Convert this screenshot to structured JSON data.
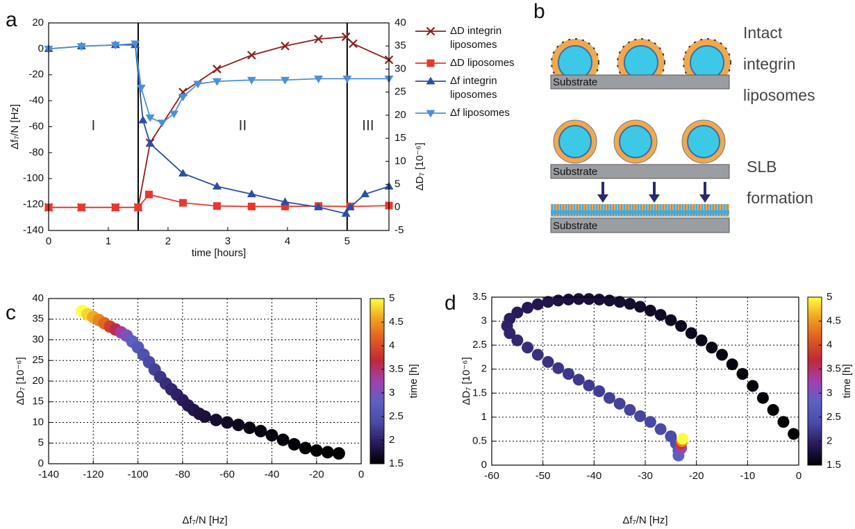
{
  "panel_labels": [
    "a",
    "b",
    "c",
    "d"
  ],
  "chart_data": [
    {
      "type": "line",
      "xlabel": "time [hours]",
      "ylabel": "Δf₇/N [Hz]",
      "y2label": "ΔD₇ [10⁻⁶]",
      "xlim": [
        0,
        5.7
      ],
      "xticks": [
        0,
        1,
        2,
        3,
        4,
        5
      ],
      "ylim": [
        -140,
        20
      ],
      "yticks": [
        -140,
        -120,
        -100,
        -80,
        -60,
        -40,
        -20,
        0,
        20
      ],
      "y2lim": [
        -5,
        40
      ],
      "y2ticks": [
        -5,
        0,
        5,
        10,
        15,
        20,
        25,
        30,
        35,
        40
      ],
      "vlines": [
        1.5,
        5
      ],
      "region_labels": [
        "I",
        "II",
        "III"
      ],
      "series": [
        {
          "name": "ΔD integrin liposomes",
          "color": "#8b1e1e",
          "marker": "x",
          "axis": "y2",
          "x": [
            0,
            0.55,
            1.12,
            1.5,
            1.7,
            2.25,
            2.82,
            3.4,
            3.96,
            4.52,
            4.98,
            5.1,
            5.7
          ],
          "values": [
            0,
            0,
            0,
            0,
            14,
            25,
            30,
            33,
            35,
            36.5,
            37,
            35.5,
            32
          ]
        },
        {
          "name": "ΔD liposomes",
          "color": "#e8382d",
          "marker": "s",
          "axis": "y2",
          "x": [
            0,
            0.55,
            1.12,
            1.5,
            1.68,
            2.25,
            2.82,
            3.4,
            3.96,
            4.52,
            5.05,
            5.7
          ],
          "values": [
            0,
            0,
            0,
            0,
            2.8,
            1,
            0.3,
            0.2,
            0.2,
            0.3,
            0.2,
            0.4
          ]
        },
        {
          "name": "Δf integrin liposomes",
          "color": "#2b4ea2",
          "marker": "^",
          "x": [
            0,
            0.55,
            1.12,
            1.45,
            1.58,
            1.7,
            2.25,
            2.82,
            3.4,
            3.96,
            4.52,
            4.98,
            5.05,
            5.3,
            5.7
          ],
          "values": [
            0,
            2,
            3,
            3,
            -55,
            -73,
            -96,
            -106,
            -112,
            -118,
            -122,
            -127,
            -122,
            -112,
            -106
          ]
        },
        {
          "name": "Δf liposomes",
          "color": "#4a90d8",
          "marker": "v",
          "x": [
            0,
            0.55,
            1.12,
            1.45,
            1.55,
            1.7,
            1.9,
            2.1,
            2.25,
            2.5,
            2.82,
            3.4,
            3.96,
            4.52,
            5.0,
            5.7
          ],
          "values": [
            0,
            2,
            3,
            4,
            -30,
            -53,
            -57,
            -50,
            -37,
            -27,
            -25,
            -24,
            -24,
            -23,
            -23,
            -23
          ]
        }
      ]
    },
    {
      "type": "scatter",
      "xlabel": "Δf₇/N [Hz]",
      "ylabel": "ΔD₇ [10⁻⁶]",
      "grid": true,
      "xlim": [
        -140,
        0
      ],
      "xticks": [
        -140,
        -120,
        -100,
        -80,
        -60,
        -40,
        -20,
        0
      ],
      "ylim": [
        0,
        40
      ],
      "yticks": [
        0,
        5,
        10,
        15,
        20,
        25,
        30,
        35,
        40
      ],
      "x": [
        -125,
        -122.5,
        -120,
        -117.5,
        -115,
        -112.5,
        -110,
        -107.5,
        -105,
        -102.5,
        -100,
        -97.5,
        -95,
        -92.5,
        -90,
        -87.5,
        -85,
        -82.5,
        -80,
        -77.5,
        -75,
        -72.5,
        -70,
        -65,
        -60,
        -55,
        -50,
        -45,
        -40,
        -35,
        -30,
        -25,
        -20,
        -15,
        -10
      ],
      "values": [
        37,
        36.2,
        35.5,
        34.8,
        34,
        33.2,
        32.5,
        31.8,
        31,
        29.6,
        28.2,
        26.4,
        24.6,
        22.8,
        21,
        19.4,
        18,
        16.7,
        15.4,
        14.1,
        13,
        12.1,
        11.4,
        10.6,
        10,
        9.4,
        8.7,
        7.9,
        6.9,
        5.8,
        4.7,
        3.8,
        3.2,
        2.8,
        2.5
      ],
      "time": [
        5.0,
        4.8,
        4.6,
        4.4,
        4.2,
        3.9,
        3.6,
        3.3,
        3.0,
        2.8,
        2.65,
        2.5,
        2.4,
        2.3,
        2.2,
        2.12,
        2.05,
        2.0,
        1.95,
        1.9,
        1.85,
        1.81,
        1.78,
        1.72,
        1.68,
        1.64,
        1.6,
        1.58,
        1.56,
        1.54,
        1.53,
        1.52,
        1.51,
        1.5,
        1.5
      ],
      "colorbar": {
        "label": "time [h]",
        "lim": [
          1.5,
          5
        ],
        "ticks": [
          1.5,
          2,
          2.5,
          3,
          3.5,
          4,
          4.5,
          5
        ],
        "colormap": [
          "#000000",
          "#2a1a5c",
          "#4a4aa8",
          "#5a62c2",
          "#a040b0",
          "#c02838",
          "#e05a20",
          "#f0a020",
          "#ffff40"
        ]
      }
    },
    {
      "type": "scatter",
      "xlabel": "Δf₇/N [Hz]",
      "ylabel": "ΔD₇ [10⁻⁶]",
      "grid": true,
      "xlim": [
        -60,
        0
      ],
      "xticks": [
        -60,
        -50,
        -40,
        -30,
        -20,
        -10,
        0
      ],
      "ylim": [
        0,
        3.5
      ],
      "yticks": [
        0,
        0.5,
        1,
        1.5,
        2,
        2.5,
        3,
        3.5
      ],
      "x": [
        -1,
        -3,
        -5,
        -7,
        -9,
        -11,
        -13,
        -15,
        -17,
        -19,
        -21,
        -23,
        -25,
        -27,
        -29,
        -31,
        -33,
        -35,
        -37,
        -39,
        -41,
        -43,
        -45,
        -47,
        -49,
        -51,
        -53,
        -55,
        -56.5,
        -57,
        -56.5,
        -55,
        -53,
        -51,
        -49,
        -47,
        -45,
        -43,
        -41,
        -39,
        -37,
        -35,
        -33,
        -31,
        -29,
        -27,
        -25,
        -24,
        -23.5,
        -23.5,
        -23,
        -23,
        -22.8,
        -22.7
      ],
      "values": [
        0.65,
        0.9,
        1.15,
        1.4,
        1.65,
        1.9,
        2.1,
        2.3,
        2.45,
        2.6,
        2.75,
        2.9,
        3.02,
        3.13,
        3.22,
        3.3,
        3.36,
        3.4,
        3.43,
        3.45,
        3.46,
        3.46,
        3.45,
        3.43,
        3.4,
        3.35,
        3.28,
        3.18,
        3.05,
        2.9,
        2.75,
        2.6,
        2.45,
        2.3,
        2.15,
        2.02,
        1.9,
        1.78,
        1.66,
        1.54,
        1.4,
        1.28,
        1.15,
        1.02,
        0.9,
        0.75,
        0.6,
        0.45,
        0.3,
        0.2,
        0.35,
        0.45,
        0.5,
        0.55
      ],
      "time": [
        1.5,
        1.51,
        1.52,
        1.54,
        1.55,
        1.56,
        1.58,
        1.59,
        1.61,
        1.62,
        1.64,
        1.65,
        1.66,
        1.68,
        1.69,
        1.71,
        1.72,
        1.73,
        1.75,
        1.76,
        1.77,
        1.79,
        1.8,
        1.82,
        1.85,
        1.88,
        1.9,
        1.93,
        1.96,
        2.0,
        2.03,
        2.06,
        2.1,
        2.13,
        2.15,
        2.18,
        2.2,
        2.22,
        2.24,
        2.26,
        2.28,
        2.3,
        2.32,
        2.34,
        2.36,
        2.38,
        2.4,
        2.45,
        2.6,
        2.8,
        3.2,
        3.8,
        4.4,
        5.0
      ],
      "colorbar": {
        "label": "time [h]",
        "lim": [
          1.5,
          5
        ],
        "ticks": [
          1.5,
          2,
          2.5,
          3,
          3.5,
          4,
          4.5,
          5
        ],
        "colormap": [
          "#000000",
          "#2a1a5c",
          "#4a4aa8",
          "#5a62c2",
          "#a040b0",
          "#c02838",
          "#e05a20",
          "#f0a020",
          "#ffff40"
        ]
      }
    }
  ],
  "diagram": {
    "intact_label": "Intact integrin liposomes",
    "slb_label": "SLB formation",
    "substrate_labels": [
      "Substrate",
      "Substrate",
      "Substrate"
    ]
  }
}
